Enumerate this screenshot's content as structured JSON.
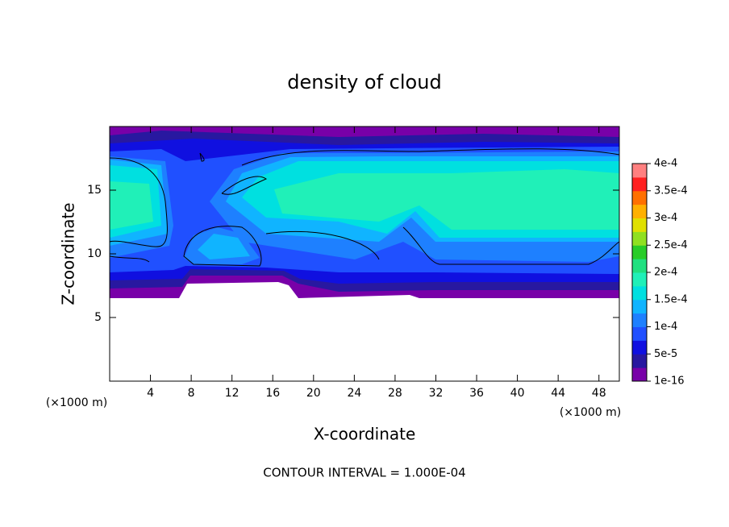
{
  "chart_data": {
    "type": "contour",
    "title": "density of cloud",
    "x_label": "X-coordinate",
    "y_label": "Z-coordinate",
    "x_unit_label": "(×1000 m)",
    "footer": "CONTOUR INTERVAL = 1.000E-04",
    "xlim": [
      0,
      50
    ],
    "xticks": [
      4,
      8,
      12,
      16,
      20,
      24,
      28,
      32,
      36,
      40,
      44,
      48
    ],
    "ylim": [
      0,
      20
    ],
    "yticks": [
      5,
      10,
      15
    ],
    "clim": [
      0,
      0.0004
    ],
    "cticks": [
      {
        "value": 1e-16,
        "label": "1e-16"
      },
      {
        "value": 5e-05,
        "label": "5e-5"
      },
      {
        "value": 0.0001,
        "label": "1e-4"
      },
      {
        "value": 0.00015,
        "label": "1.5e-4"
      },
      {
        "value": 0.0002,
        "label": "2e-4"
      },
      {
        "value": 0.00025,
        "label": "2.5e-4"
      },
      {
        "value": 0.0003,
        "label": "3e-4"
      },
      {
        "value": 0.00035,
        "label": "3.5e-4"
      },
      {
        "value": 0.0004,
        "label": "4e-4"
      }
    ],
    "colors": [
      "#7800a8",
      "#2818a0",
      "#1010e0",
      "#2050ff",
      "#1e80ff",
      "#10b4ff",
      "#00e0e0",
      "#20f0b8",
      "#20e080",
      "#28cc28",
      "#90e020",
      "#e0e000",
      "#ffb000",
      "#ff7000",
      "#ff2020",
      "#ff8080"
    ]
  }
}
